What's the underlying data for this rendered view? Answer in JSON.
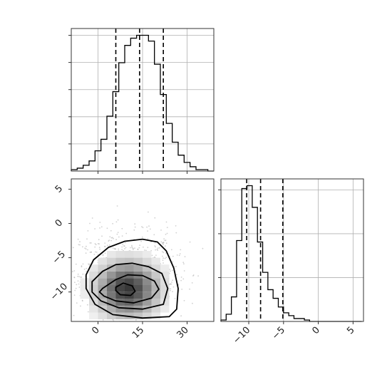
{
  "chart_data": [
    {
      "type": "histogram",
      "panel": "top-left",
      "parameter": "x",
      "xlim": [
        -9,
        39
      ],
      "bins": {
        "start": -9,
        "width": 2
      },
      "counts": [
        1,
        2,
        4,
        7,
        14,
        22,
        38,
        55,
        75,
        87,
        92,
        94,
        94,
        90,
        74,
        53,
        33,
        20,
        11,
        6,
        3,
        1,
        1,
        0
      ],
      "quantile_lines": [
        6,
        14,
        22
      ],
      "grid": true
    },
    {
      "type": "histogram",
      "panel": "bottom-right",
      "parameter": "y",
      "xlim": [
        -14,
        6.5
      ],
      "xticks": [
        "−10",
        "−5",
        "0",
        "5"
      ],
      "bins": {
        "start": -14,
        "width": 0.75
      },
      "counts": [
        1,
        5,
        17,
        56,
        92,
        94,
        79,
        55,
        34,
        22,
        16,
        10,
        6,
        4,
        2,
        2,
        1,
        0,
        0,
        0,
        0,
        0,
        0,
        0,
        0,
        0,
        0
      ],
      "quantile_lines": [
        -10.3,
        -8.3,
        -5.1
      ],
      "grid": true
    },
    {
      "type": "scatter",
      "panel": "bottom-left",
      "x_parameter": "x",
      "y_parameter": "y",
      "xlim": [
        -9,
        39
      ],
      "ylim": [
        -14.3,
        6.5
      ],
      "xticks": [
        "0",
        "15",
        "30"
      ],
      "yticks": [
        "5",
        "0",
        "−5",
        "−10"
      ],
      "density": {
        "center": [
          10,
          -9.6
        ],
        "spread": [
          8,
          2.8
        ],
        "contour_levels": 4,
        "contours": [
          {
            "x": [
              1.5,
              6,
              10,
              15,
              19,
              20.5,
              18,
              12,
              6,
              2,
              0.5
            ],
            "y": [
              -9.5,
              -8.2,
              -7.5,
              -7.6,
              -8.4,
              -9.6,
              -10.9,
              -11.6,
              -11.3,
              -10.6,
              -10
            ]
          },
          {
            "x": [
              -2,
              1.5,
              6,
              11.5,
              17,
              21.5,
              23.5,
              22,
              15,
              7,
              1,
              -2
            ],
            "y": [
              -8.5,
              -7,
              -6,
              -5.8,
              -6.3,
              -7.3,
              -9.5,
              -11.8,
              -12.5,
              -12.3,
              -11.3,
              -10
            ]
          },
          {
            "x": [
              -4,
              -1.5,
              3.5,
              9,
              15,
              20,
              23,
              25.5,
              27,
              26.5,
              24,
              15,
              5,
              -1,
              -4
            ],
            "y": [
              -7.5,
              -5.3,
              -3.5,
              -2.6,
              -2.3,
              -2.7,
              -4,
              -6.5,
              -9.5,
              -12.5,
              -13.6,
              -13.8,
              -13.3,
              -11.8,
              -9.5
            ]
          }
        ],
        "peak": {
          "x": [
            6,
            8.5,
            11.5,
            12.5,
            11,
            7.5,
            6
          ],
          "y": [
            -9.3,
            -8.7,
            -9.1,
            -9.9,
            -10.5,
            -10.4,
            -9.8
          ]
        }
      }
    }
  ]
}
